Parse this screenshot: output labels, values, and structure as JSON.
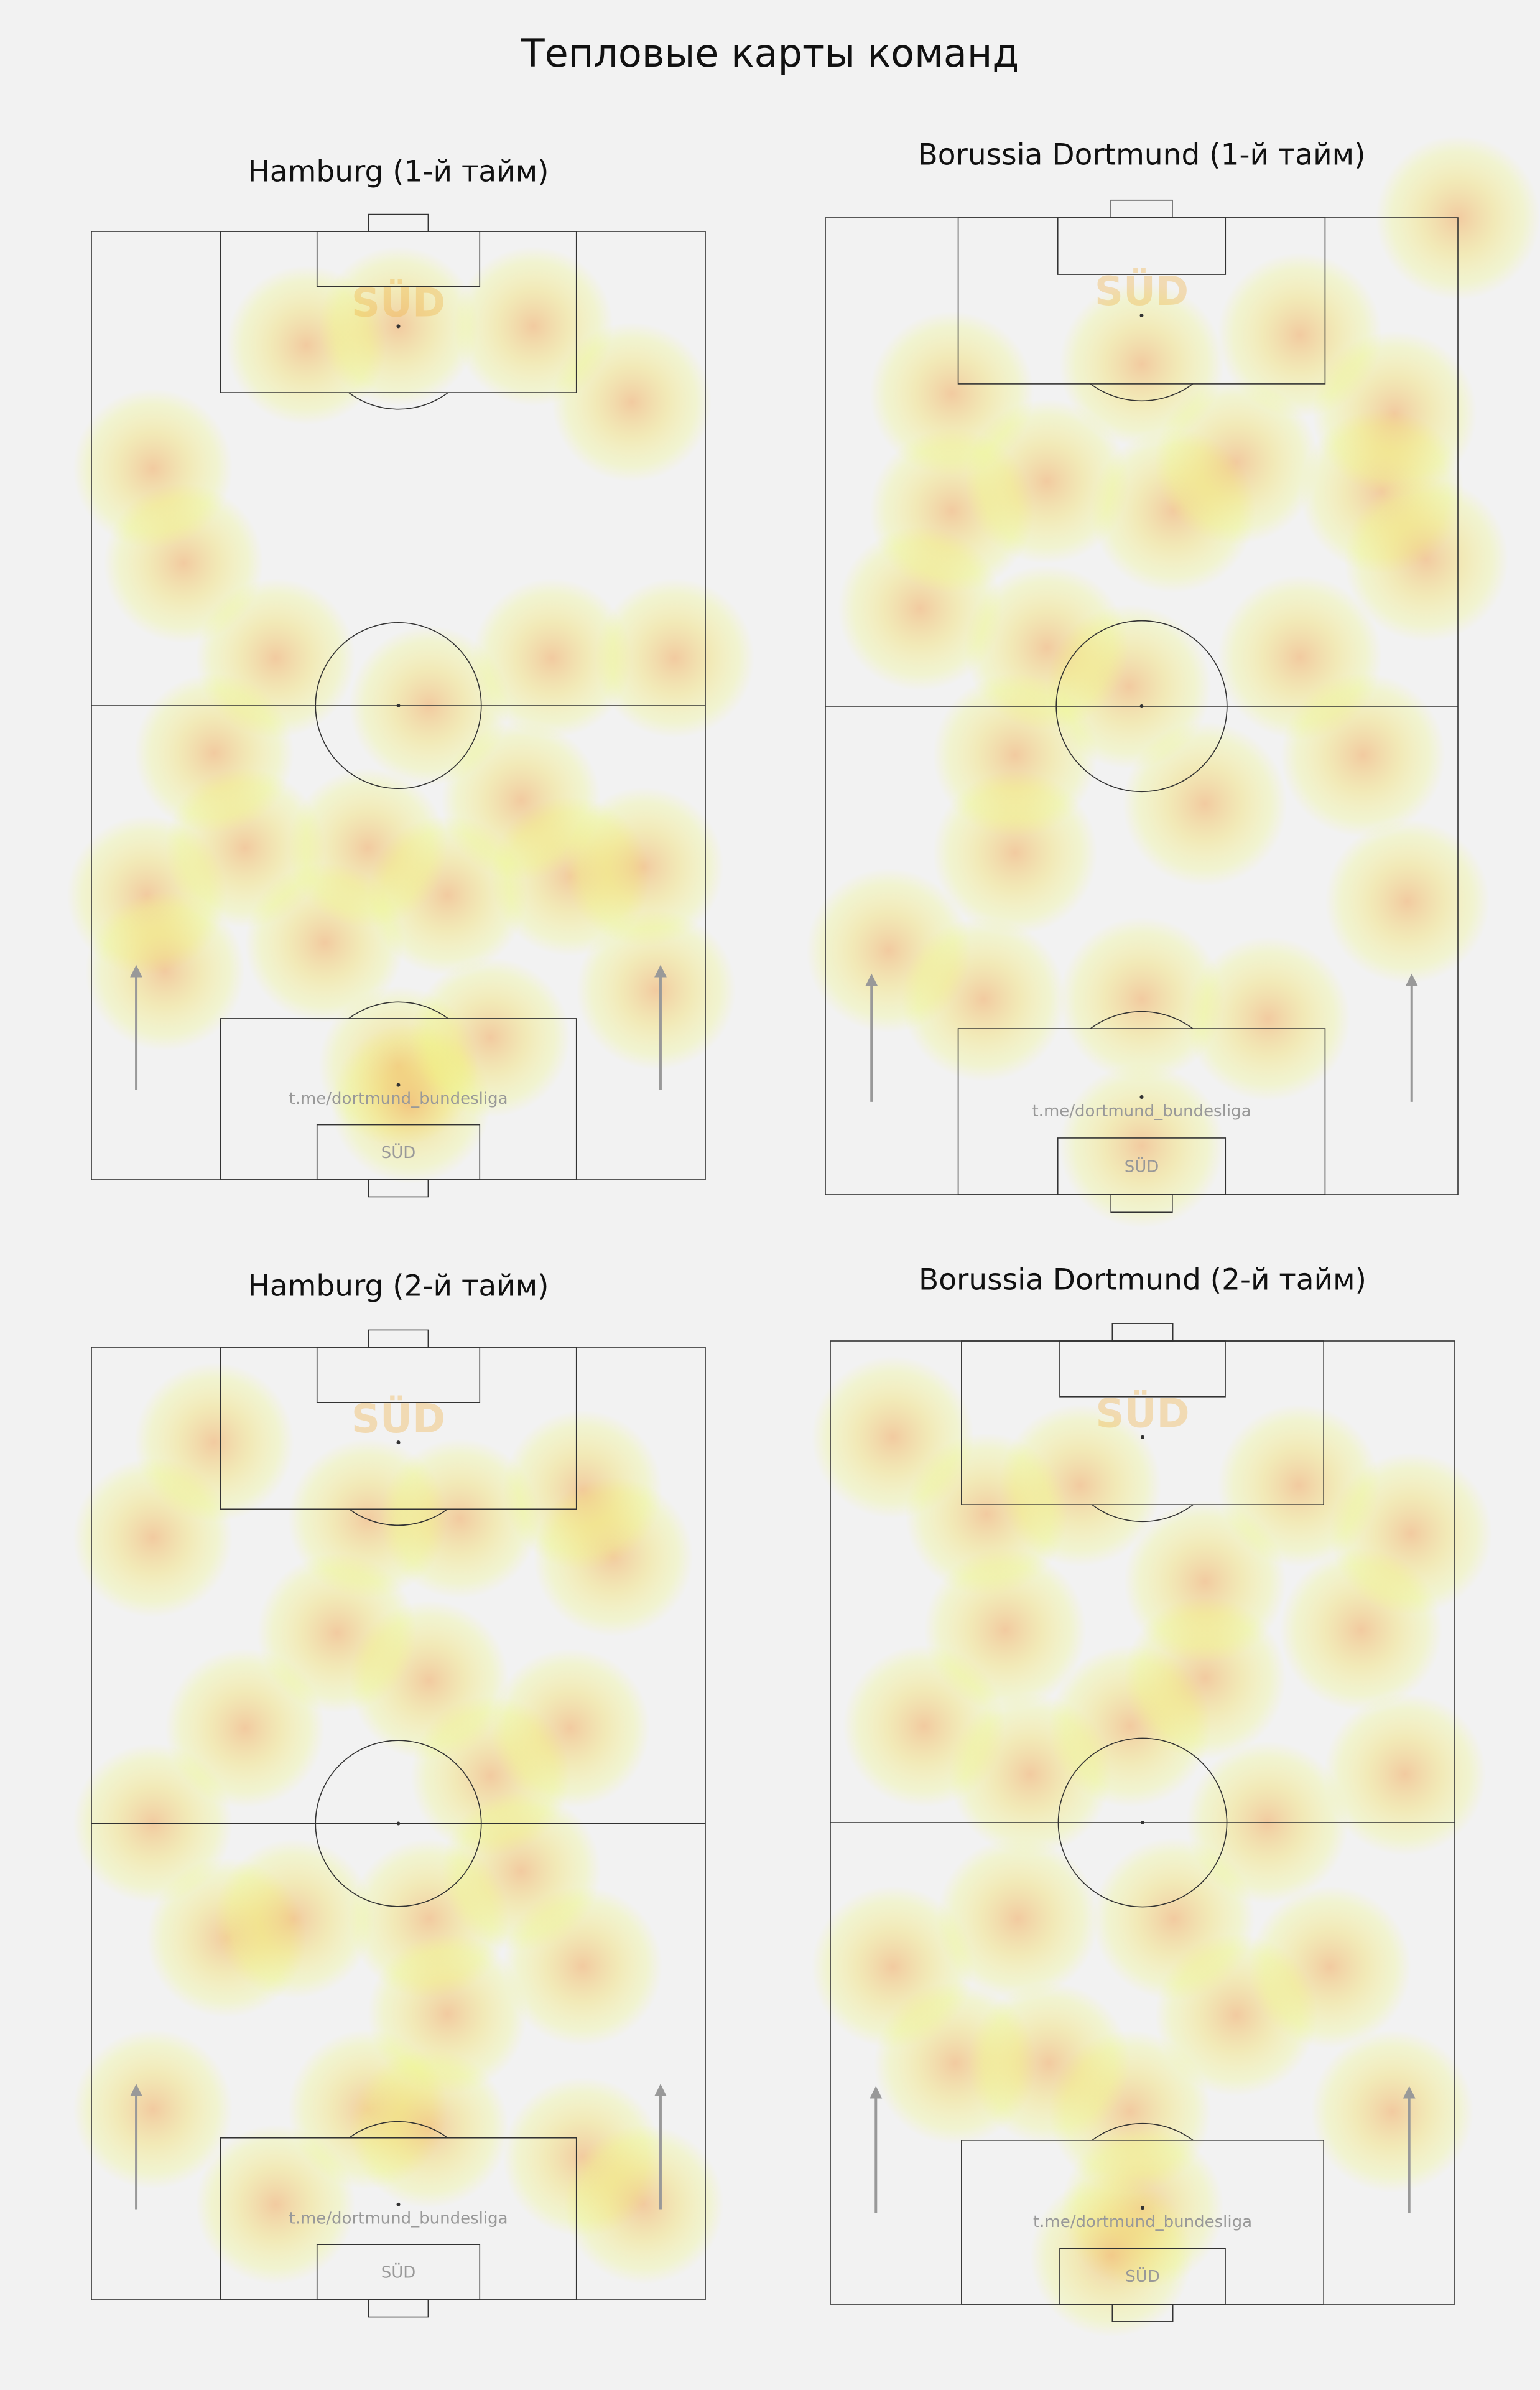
{
  "title": "Тепловые карты команд",
  "watermark": "t.me/dortmund_bundesliga",
  "logo_text": "SÜD",
  "chart_data": [
    {
      "type": "heatmap",
      "title": "Hamburg (1-й тайм)",
      "x": [
        9,
        12,
        25,
        38,
        50,
        52,
        65,
        58,
        78,
        92,
        90,
        70,
        55,
        75,
        30,
        15,
        10,
        35,
        50,
        72,
        88,
        95,
        45,
        20
      ],
      "y": [
        30,
        22,
        35,
        25,
        12,
        8,
        15,
        30,
        32,
        20,
        33,
        40,
        50,
        55,
        55,
        65,
        75,
        88,
        90,
        90,
        82,
        55,
        35,
        45
      ]
    },
    {
      "type": "heatmap",
      "title": "Borussia Dortmund (1-й тайм)",
      "x": [
        48,
        60,
        35,
        75,
        85,
        15,
        20,
        35,
        55,
        65,
        88,
        95,
        90,
        100,
        75,
        20,
        50,
        30,
        10,
        25,
        50,
        70,
        50,
        92,
        30
      ],
      "y": [
        52,
        40,
        56,
        55,
        45,
        60,
        70,
        73,
        70,
        75,
        72,
        65,
        80,
        100,
        88,
        82,
        85,
        35,
        25,
        20,
        20,
        18,
        5,
        30,
        45
      ]
    },
    {
      "type": "heatmap",
      "title": "Hamburg (2-й тайм)",
      "x": [
        10,
        22,
        33,
        25,
        10,
        55,
        58,
        45,
        55,
        80,
        90,
        80,
        65,
        78,
        85,
        80,
        55,
        40,
        20,
        45,
        60,
        10,
        30,
        70
      ],
      "y": [
        50,
        38,
        40,
        60,
        80,
        40,
        30,
        20,
        18,
        15,
        10,
        35,
        55,
        60,
        78,
        85,
        65,
        70,
        90,
        82,
        82,
        20,
        10,
        45
      ]
    },
    {
      "type": "heatmap",
      "title": "Borussia Dortmund (2-й тайм)",
      "x": [
        10,
        15,
        28,
        32,
        48,
        60,
        70,
        85,
        93,
        92,
        48,
        50,
        45,
        20,
        35,
        65,
        80,
        90,
        55,
        30,
        10,
        40,
        75,
        60,
        25
      ],
      "y": [
        90,
        60,
        70,
        55,
        60,
        65,
        50,
        70,
        80,
        55,
        20,
        10,
        5,
        25,
        25,
        30,
        35,
        20,
        40,
        40,
        35,
        85,
        85,
        75,
        82
      ]
    }
  ]
}
